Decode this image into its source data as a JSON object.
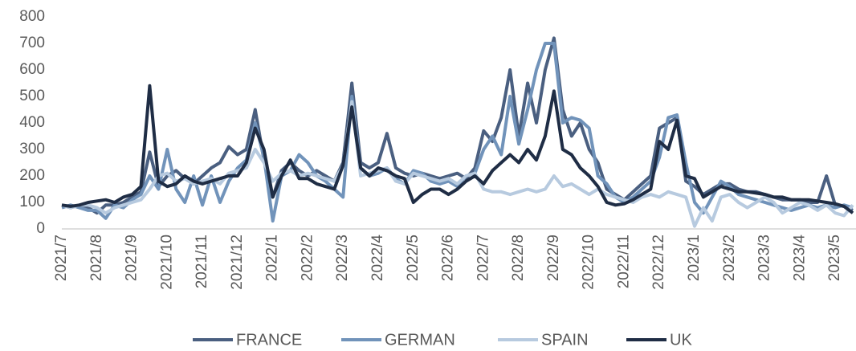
{
  "chart_data": {
    "type": "line",
    "categories": [
      "2021/7",
      null,
      null,
      null,
      "2021/8",
      null,
      null,
      null,
      "2021/9",
      null,
      null,
      null,
      "2021/10",
      null,
      null,
      null,
      "2021/11",
      null,
      null,
      null,
      "2021/12",
      null,
      null,
      null,
      "2022/1",
      null,
      null,
      null,
      "2022/2",
      null,
      null,
      null,
      "2022/3",
      null,
      null,
      null,
      "2022/4",
      null,
      null,
      null,
      "2022/5",
      null,
      null,
      null,
      "2022/6",
      null,
      null,
      null,
      "2022/7",
      null,
      null,
      null,
      "2022/8",
      null,
      null,
      null,
      "2022/9",
      null,
      null,
      null,
      "2022/10",
      null,
      null,
      null,
      "2022/11",
      null,
      null,
      null,
      "2022/12",
      null,
      null,
      null,
      "2023/1",
      null,
      null,
      null,
      "2023/2",
      null,
      null,
      null,
      "2023/3",
      null,
      null,
      null,
      "2023/4",
      null,
      null,
      null,
      "2023/5",
      null,
      null
    ],
    "series": [
      {
        "name": "FRANCE",
        "color": "#4a5f80",
        "values": [
          90,
          80,
          90,
          80,
          60,
          90,
          90,
          100,
          120,
          140,
          290,
          160,
          200,
          220,
          190,
          170,
          200,
          230,
          250,
          310,
          280,
          300,
          450,
          260,
          120,
          220,
          250,
          220,
          200,
          220,
          200,
          180,
          250,
          550,
          250,
          230,
          250,
          360,
          230,
          210,
          200,
          210,
          200,
          190,
          200,
          210,
          190,
          230,
          370,
          330,
          420,
          600,
          350,
          550,
          400,
          600,
          720,
          450,
          350,
          400,
          300,
          250,
          150,
          130,
          110,
          140,
          170,
          200,
          380,
          400,
          420,
          180,
          160,
          130,
          150,
          170,
          170,
          150,
          140,
          140,
          130,
          120,
          110,
          110,
          110,
          100,
          100,
          200,
          90,
          85,
          70
        ]
      },
      {
        "name": "GERMAN",
        "color": "#7193ba",
        "values": [
          80,
          90,
          80,
          70,
          70,
          40,
          90,
          80,
          110,
          130,
          200,
          150,
          300,
          150,
          100,
          200,
          90,
          200,
          100,
          180,
          230,
          260,
          400,
          270,
          30,
          200,
          220,
          280,
          250,
          200,
          180,
          150,
          120,
          500,
          230,
          200,
          210,
          230,
          190,
          170,
          220,
          210,
          180,
          170,
          180,
          160,
          200,
          210,
          300,
          350,
          280,
          500,
          320,
          450,
          600,
          700,
          700,
          400,
          420,
          410,
          380,
          200,
          170,
          120,
          100,
          120,
          150,
          180,
          270,
          420,
          430,
          250,
          100,
          60,
          120,
          180,
          160,
          130,
          120,
          110,
          100,
          90,
          80,
          70,
          80,
          90,
          80,
          90,
          80,
          90,
          80
        ]
      },
      {
        "name": "SPAIN",
        "color": "#b7cadf",
        "values": [
          90,
          80,
          90,
          90,
          80,
          60,
          80,
          90,
          100,
          110,
          150,
          200,
          210,
          180,
          190,
          170,
          180,
          190,
          170,
          210,
          220,
          230,
          300,
          250,
          180,
          210,
          220,
          200,
          210,
          200,
          190,
          180,
          240,
          480,
          200,
          210,
          220,
          230,
          180,
          170,
          210,
          200,
          190,
          180,
          190,
          170,
          200,
          210,
          150,
          140,
          140,
          130,
          140,
          150,
          140,
          150,
          200,
          160,
          170,
          150,
          130,
          150,
          130,
          120,
          110,
          100,
          120,
          130,
          120,
          140,
          130,
          120,
          10,
          80,
          30,
          120,
          130,
          100,
          80,
          100,
          120,
          100,
          60,
          80,
          100,
          90,
          70,
          90,
          60,
          50,
          90
        ]
      },
      {
        "name": "UK",
        "color": "#1f2d45",
        "values": [
          90,
          85,
          90,
          100,
          105,
          110,
          100,
          120,
          130,
          160,
          540,
          180,
          160,
          170,
          200,
          180,
          170,
          180,
          190,
          200,
          200,
          250,
          380,
          300,
          120,
          200,
          260,
          190,
          190,
          170,
          160,
          150,
          240,
          460,
          230,
          200,
          230,
          220,
          200,
          190,
          100,
          130,
          150,
          150,
          130,
          150,
          180,
          200,
          170,
          220,
          250,
          280,
          250,
          300,
          260,
          350,
          520,
          300,
          280,
          230,
          200,
          160,
          100,
          90,
          95,
          110,
          130,
          150,
          330,
          300,
          410,
          200,
          190,
          120,
          140,
          160,
          150,
          140,
          140,
          135,
          130,
          120,
          120,
          110,
          110,
          110,
          105,
          100,
          95,
          85,
          60
        ]
      }
    ],
    "ylim": [
      0,
      800
    ],
    "yticks": [
      0,
      100,
      200,
      300,
      400,
      500,
      600,
      700,
      800
    ],
    "legend": "bottom"
  }
}
